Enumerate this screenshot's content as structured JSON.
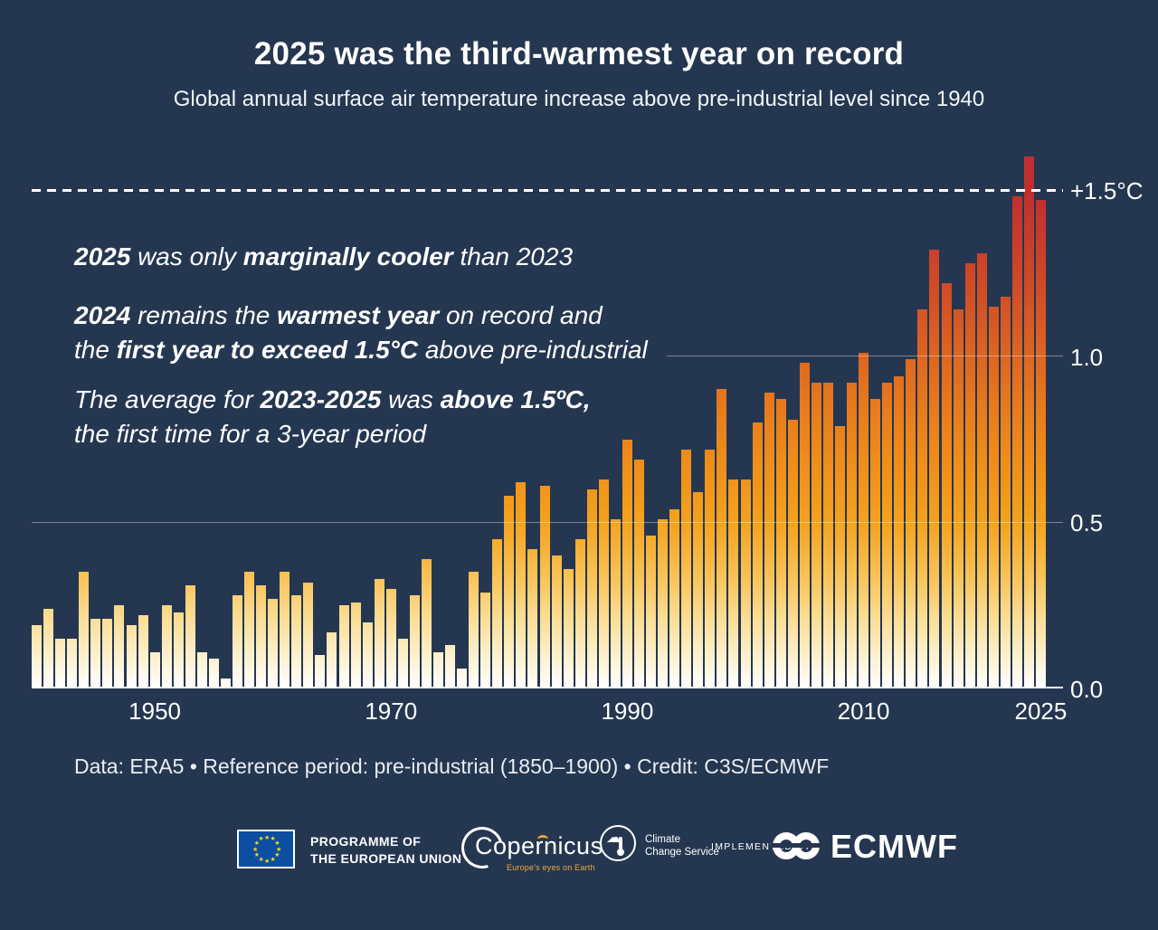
{
  "header": {
    "title": "2025 was the third-warmest year on record",
    "subtitle": "Global annual surface air temperature increase above pre-industrial level since 1940"
  },
  "annotations": [
    {
      "lines": [
        [
          {
            "t": "2025",
            "b": true
          },
          {
            "t": " was only ",
            "b": false
          },
          {
            "t": "marginally cooler",
            "b": true
          },
          {
            "t": " than 2023",
            "b": false
          }
        ]
      ]
    },
    {
      "lines": [
        [
          {
            "t": "2024",
            "b": true
          },
          {
            "t": " remains the ",
            "b": false
          },
          {
            "t": "warmest year",
            "b": true
          },
          {
            "t": " on record and",
            "b": false
          }
        ],
        [
          {
            "t": "the ",
            "b": false
          },
          {
            "t": "first year to exceed 1.5°C",
            "b": true
          },
          {
            "t": " above pre-industrial",
            "b": false
          }
        ]
      ]
    },
    {
      "lines": [
        [
          {
            "t": "The average for ",
            "b": false
          },
          {
            "t": "2023-2025",
            "b": true
          },
          {
            "t": " was ",
            "b": false
          },
          {
            "t": "above 1.5ºC,",
            "b": true
          }
        ],
        [
          {
            "t": "the first time for a 3-year period",
            "b": false
          }
        ]
      ]
    }
  ],
  "chart_data": {
    "type": "bar",
    "title": "2025 was the third-warmest year on record",
    "subtitle": "Global annual surface air temperature increase above pre-industrial level since 1940",
    "unit": "°C above pre-industrial (1850–1900)",
    "ylim": [
      0,
      1.65
    ],
    "grid": "horizontal",
    "reference_line": {
      "value": 1.5,
      "label": "+1.5°C",
      "style": "dashed"
    },
    "y_ticks": [
      {
        "label": "0.0",
        "value": 0.0
      },
      {
        "label": "0.5",
        "value": 0.5
      },
      {
        "label": "1.0",
        "value": 1.0
      },
      {
        "label": "+1.5°C",
        "value": 1.5
      }
    ],
    "x_ticks": [
      {
        "label": "1950",
        "year": 1950
      },
      {
        "label": "1970",
        "year": 1970
      },
      {
        "label": "1990",
        "year": 1990
      },
      {
        "label": "2010",
        "year": 2010
      },
      {
        "label": "2025",
        "year": 2025
      }
    ],
    "start_year": 1940,
    "x": [
      1940,
      1941,
      1942,
      1943,
      1944,
      1945,
      1946,
      1947,
      1948,
      1949,
      1950,
      1951,
      1952,
      1953,
      1954,
      1955,
      1956,
      1957,
      1958,
      1959,
      1960,
      1961,
      1962,
      1963,
      1964,
      1965,
      1966,
      1967,
      1968,
      1969,
      1970,
      1971,
      1972,
      1973,
      1974,
      1975,
      1976,
      1977,
      1978,
      1979,
      1980,
      1981,
      1982,
      1983,
      1984,
      1985,
      1986,
      1987,
      1988,
      1989,
      1990,
      1991,
      1992,
      1993,
      1994,
      1995,
      1996,
      1997,
      1998,
      1999,
      2000,
      2001,
      2002,
      2003,
      2004,
      2005,
      2006,
      2007,
      2008,
      2009,
      2010,
      2011,
      2012,
      2013,
      2014,
      2015,
      2016,
      2017,
      2018,
      2019,
      2020,
      2021,
      2022,
      2023,
      2024,
      2025
    ],
    "values": [
      0.19,
      0.24,
      0.15,
      0.15,
      0.35,
      0.21,
      0.21,
      0.25,
      0.19,
      0.22,
      0.11,
      0.25,
      0.23,
      0.31,
      0.11,
      0.09,
      0.03,
      0.28,
      0.35,
      0.31,
      0.27,
      0.35,
      0.28,
      0.32,
      0.1,
      0.17,
      0.25,
      0.26,
      0.2,
      0.33,
      0.3,
      0.15,
      0.28,
      0.39,
      0.11,
      0.13,
      0.06,
      0.35,
      0.29,
      0.45,
      0.58,
      0.62,
      0.42,
      0.61,
      0.4,
      0.36,
      0.45,
      0.6,
      0.63,
      0.51,
      0.75,
      0.69,
      0.46,
      0.51,
      0.54,
      0.72,
      0.59,
      0.72,
      0.9,
      0.63,
      0.63,
      0.8,
      0.89,
      0.87,
      0.81,
      0.98,
      0.92,
      0.92,
      0.79,
      0.92,
      1.01,
      0.87,
      0.92,
      0.94,
      0.99,
      1.14,
      1.32,
      1.22,
      1.14,
      1.28,
      1.31,
      1.15,
      1.18,
      1.48,
      1.6,
      1.47
    ],
    "bar_gradient_bottom_to_top": [
      "#ffffff",
      "#fdf0cd",
      "#fbdc92",
      "#f9c358",
      "#f4a21e",
      "#ef8f1a",
      "#e87c1d",
      "#dd6621",
      "#d25126",
      "#c93e2a",
      "#c22e2e",
      "#c52f33"
    ]
  },
  "footer": {
    "credit": "Data: ERA5 • Reference period: pre-industrial (1850–1900) • Credit: C3S/ECMWF"
  },
  "logos": {
    "eu": {
      "line1": "PROGRAMME OF",
      "line2": "THE EUROPEAN UNION",
      "flag_blue": "#0b4ea2",
      "star_yellow": "#ffd617"
    },
    "copernicus": {
      "name": "Copernicus",
      "tagline": "Europe's eyes on Earth",
      "tagline_color": "#eda73f"
    },
    "c3s": {
      "line1": "Climate",
      "line2": "Change Service"
    },
    "ecmwf": {
      "prefix": "IMPLEMENTED BY",
      "name": "ECMWF"
    }
  },
  "colors": {
    "background": "#253750",
    "text": "#ffffff",
    "gridline": "rgba(255,255,255,0.38)"
  }
}
